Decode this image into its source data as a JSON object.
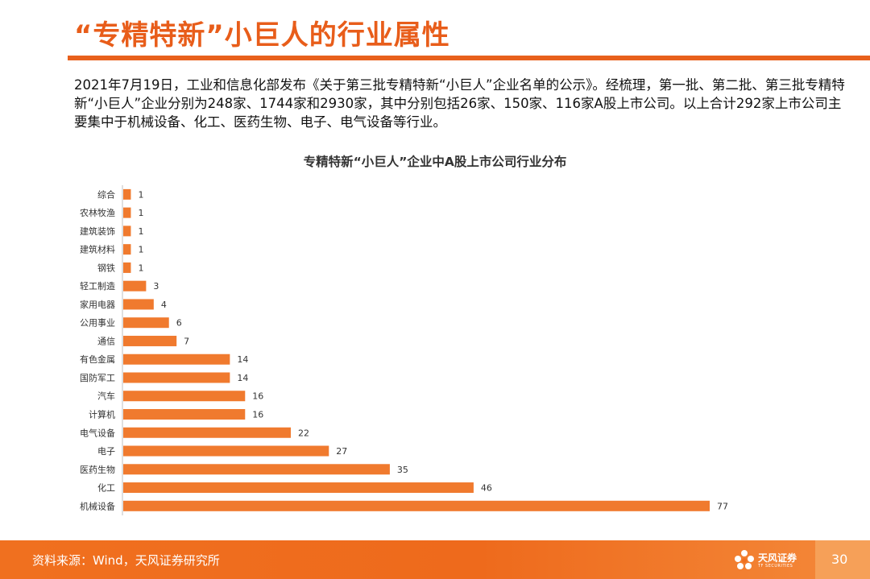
{
  "header": {
    "title": "“专精特新”小巨人的行业属性"
  },
  "intro": {
    "text": "2021年7月19日，工业和信息化部发布《关于第三批专精特新“小巨人”企业名单的公示》。经梳理，第一批、第二批、第三批专精特新“小巨人”企业分别为248家、1744家和2930家，其中分别包括26家、150家、116家A股上市公司。以上合计292家上市公司主要集中于机械设备、化工、医药生物、电子、电气设备等行业。"
  },
  "chart_data": {
    "type": "bar",
    "orientation": "horizontal",
    "title": "专精特新“小巨人”企业中A股上市公司行业分布",
    "categories": [
      "综合",
      "农林牧渔",
      "建筑装饰",
      "建筑材料",
      "钢铁",
      "轻工制造",
      "家用电器",
      "公用事业",
      "通信",
      "有色金属",
      "国防军工",
      "汽车",
      "计算机",
      "电气设备",
      "电子",
      "医药生物",
      "化工",
      "机械设备"
    ],
    "values": [
      1,
      1,
      1,
      1,
      1,
      3,
      4,
      6,
      7,
      14,
      14,
      16,
      16,
      22,
      27,
      35,
      46,
      77
    ],
    "xlabel": "",
    "ylabel": "",
    "xlim": [
      0,
      77
    ],
    "grid": false,
    "legend": "none",
    "bar_color": "#f07a2e",
    "data_labels": true
  },
  "footer": {
    "source": "资料来源：Wind，天风证券研究所",
    "logo_cn": "天风证券",
    "logo_en": "TF SECURITIES",
    "page_number": "30"
  },
  "colors": {
    "accent": "#e8601c",
    "footer": "#f0701f"
  }
}
